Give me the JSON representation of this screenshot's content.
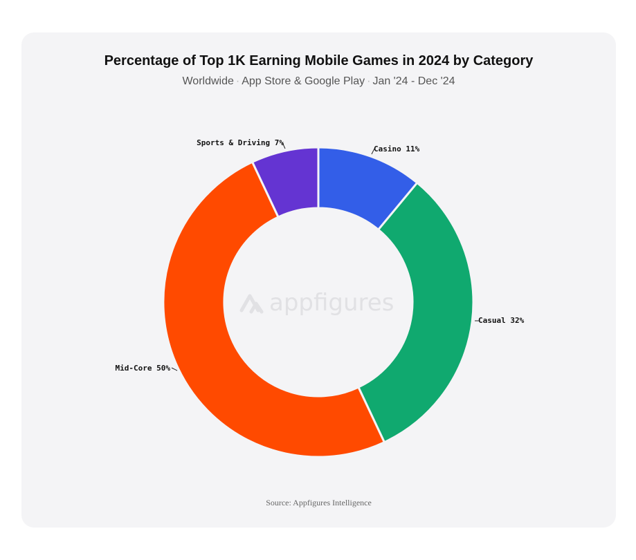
{
  "header": {
    "title": "Percentage of Top 1K Earning Mobile Games in 2024 by Category",
    "subtitle_parts": [
      "Worldwide",
      "App Store & Google Play",
      "Jan '24 - Dec '24"
    ],
    "separator": "·"
  },
  "watermark": {
    "text": "appfigures",
    "icon": "appfigures-logo-icon"
  },
  "footer": {
    "source": "Source: Appfigures Intelligence"
  },
  "chart_data": {
    "type": "pie",
    "variant": "donut",
    "title": "Percentage of Top 1K Earning Mobile Games in 2024 by Category",
    "subtitle": "Worldwide · App Store & Google Play · Jan '24 - Dec '24",
    "unit": "%",
    "start": "12 o'clock",
    "direction": "clockwise",
    "slices": [
      {
        "name": "Casino",
        "value": 11,
        "label": "Casino 11%",
        "color": "#335ee8"
      },
      {
        "name": "Casual",
        "value": 32,
        "label": "Casual 32%",
        "color": "#10a96f"
      },
      {
        "name": "Mid-Core",
        "value": 50,
        "label": "Mid-Core 50%",
        "color": "#ff4a00"
      },
      {
        "name": "Sports & Driving",
        "value": 7,
        "label": "Sports & Driving 7%",
        "color": "#6434d2"
      }
    ]
  }
}
